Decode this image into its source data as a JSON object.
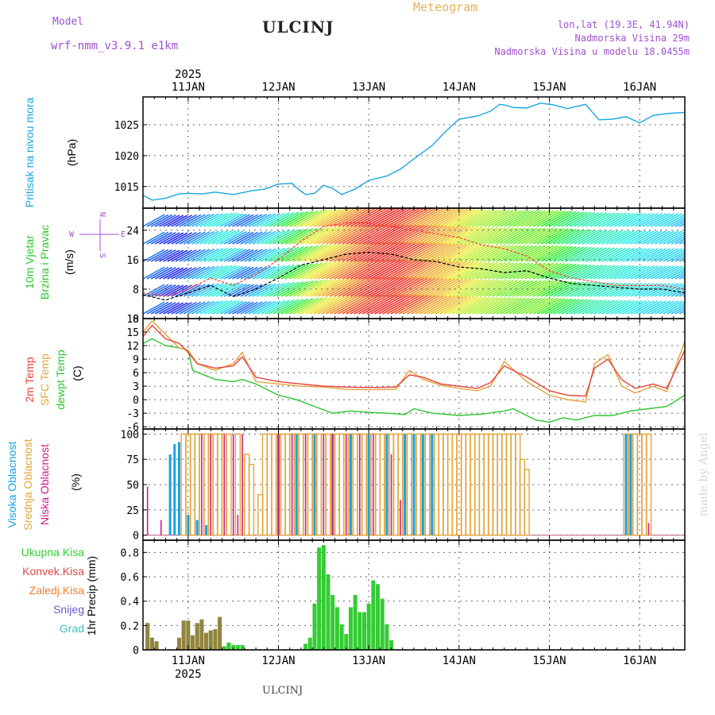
{
  "header": {
    "model_label": "Model",
    "model_name": "wrf-nmm_v3.9.1 e1km",
    "station": "ULCINJ",
    "product": "Meteogram",
    "lonlat": "lon,lat (19.3E, 41.94N)",
    "elevation": "Nadmorska Visina 29m",
    "model_elevation": "Nadmorska Visina u modelu 18.0455m",
    "signature": "made by Angel",
    "footer_station": "ULCINJ"
  },
  "colors": {
    "pressure": "#1aa6e0",
    "temp": "#e8403a",
    "sfc_temp": "#e3a43a",
    "dewpoint": "#2ec52e",
    "cloud_high": "#1aa0e6",
    "cloud_mid": "#e3a43a",
    "cloud_low": "#d01a8a",
    "precip_total": "#33cc33",
    "precip_conv": "#e04848",
    "precip_snow": "#6a5acd",
    "precip_frz": "#f08030",
    "precip_grad": "#40c0c0",
    "purple_label": "#a050d0",
    "orange_label": "#e8b060"
  },
  "chart_data": {
    "type": "line",
    "year": "2025",
    "day_labels": [
      "11JAN",
      "12JAN",
      "13JAN",
      "14JAN",
      "15JAN",
      "16JAN"
    ],
    "panels": [
      {
        "name": "pressure",
        "labels": [
          "Pritisak na nivou mora",
          "(hPa)"
        ],
        "ylim": [
          1011.5,
          1029.5
        ],
        "yticks": [
          1015,
          1020,
          1025
        ],
        "series": [
          {
            "name": "Pritisak na nivou mora",
            "x": [
              10.5,
              10.6,
              10.75,
              10.9,
              11.0,
              11.15,
              11.3,
              11.5,
              11.7,
              11.85,
              12.0,
              12.15,
              12.2,
              12.3,
              12.4,
              12.5,
              12.6,
              12.7,
              12.85,
              13.0,
              13.2,
              13.35,
              13.5,
              13.7,
              13.85,
              14.0,
              14.2,
              14.35,
              14.45,
              14.5,
              14.6,
              14.75,
              14.9,
              15.05,
              15.2,
              15.4,
              15.55,
              15.7,
              15.85,
              16.0,
              16.15,
              16.3,
              16.5
            ],
            "y": [
              1013.6,
              1012.8,
              1013.1,
              1013.8,
              1013.9,
              1013.8,
              1014.1,
              1013.7,
              1014.3,
              1014.6,
              1015.4,
              1015.5,
              1014.8,
              1013.7,
              1013.9,
              1015.2,
              1014.7,
              1013.7,
              1014.6,
              1016.0,
              1016.7,
              1017.8,
              1019.5,
              1021.6,
              1023.9,
              1025.9,
              1026.4,
              1027.2,
              1028.3,
              1028.2,
              1027.8,
              1027.7,
              1028.5,
              1028.2,
              1027.6,
              1028.3,
              1025.8,
              1025.9,
              1026.3,
              1025.3,
              1026.5,
              1026.8,
              1027.0
            ]
          }
        ]
      },
      {
        "name": "wind",
        "labels": [
          "10m Vjetar",
          "Brzina i Pravac",
          "(m/s)"
        ],
        "compass": [
          "N",
          "W",
          "E",
          "S"
        ],
        "ylim": [
          0,
          30
        ],
        "yticks": [
          0,
          8,
          16,
          24
        ],
        "series": [
          {
            "name": "speed",
            "x": [
              10.5,
              10.75,
              11.0,
              11.25,
              11.5,
              11.75,
              12.0,
              12.25,
              12.5,
              12.75,
              13.0,
              13.25,
              13.5,
              13.75,
              14.0,
              14.25,
              14.5,
              14.75,
              15.0,
              15.25,
              15.5,
              15.75,
              16.0,
              16.25,
              16.5
            ],
            "y": [
              6.5,
              5.0,
              7.0,
              9.0,
              6.0,
              8.0,
              11.0,
              14.5,
              16.0,
              17.5,
              18.0,
              17.5,
              16.0,
              15.5,
              14.0,
              13.5,
              12.5,
              13.0,
              11.0,
              9.5,
              9.0,
              8.5,
              8.0,
              8.0,
              7.0
            ]
          },
          {
            "name": "gust",
            "x": [
              10.5,
              10.75,
              11.0,
              11.25,
              11.5,
              11.75,
              12.0,
              12.25,
              12.5,
              12.75,
              13.0,
              13.25,
              13.5,
              13.75,
              14.0,
              14.25,
              14.5,
              14.75,
              15.0,
              15.25,
              15.5,
              15.75,
              16.0,
              16.25,
              16.5
            ],
            "y": [
              7,
              6,
              8,
              11,
              9,
              12,
              16,
              21,
              25,
              26,
              26,
              25,
              24,
              23,
              22,
              20,
              19,
              17,
              13,
              11,
              10,
              9,
              9,
              9,
              8
            ]
          }
        ]
      },
      {
        "name": "temperature",
        "labels": [
          "2m Temp",
          "SFC Temp",
          "dewpt Temp",
          "(C)"
        ],
        "ylim": [
          -6.5,
          18
        ],
        "yticks": [
          -6,
          -3,
          0,
          3,
          6,
          9,
          12,
          15,
          18
        ],
        "series": [
          {
            "name": "2m Temp",
            "x": [
              10.5,
              10.6,
              10.75,
              10.9,
              11.0,
              11.1,
              11.3,
              11.5,
              11.6,
              11.75,
              12.0,
              12.25,
              12.5,
              12.75,
              13.0,
              13.3,
              13.45,
              13.6,
              13.8,
              14.0,
              14.2,
              14.35,
              14.5,
              14.75,
              15.0,
              15.2,
              15.4,
              15.5,
              15.65,
              15.8,
              15.95,
              16.15,
              16.3,
              16.5
            ],
            "y": [
              14.0,
              16.5,
              13.5,
              12.5,
              10.5,
              8.0,
              7.0,
              7.5,
              9.5,
              5.0,
              4.0,
              3.5,
              3.0,
              2.8,
              2.7,
              2.8,
              5.5,
              5.0,
              3.5,
              3.0,
              2.5,
              3.8,
              7.5,
              5.0,
              2.0,
              1.0,
              0.8,
              7.0,
              9.0,
              4.5,
              2.5,
              3.5,
              2.5,
              11.0
            ]
          },
          {
            "name": "SFC Temp",
            "x": [
              10.5,
              10.6,
              10.75,
              10.9,
              11.0,
              11.1,
              11.3,
              11.5,
              11.6,
              11.75,
              12.0,
              12.25,
              12.5,
              12.75,
              13.0,
              13.3,
              13.45,
              13.6,
              13.8,
              14.0,
              14.2,
              14.35,
              14.5,
              14.75,
              15.0,
              15.2,
              15.4,
              15.5,
              15.65,
              15.8,
              15.95,
              16.15,
              16.3,
              16.5
            ],
            "y": [
              15.0,
              17.5,
              14.5,
              11.5,
              11.0,
              8.0,
              6.5,
              8.0,
              10.5,
              4.0,
              3.5,
              3.0,
              2.8,
              2.3,
              2.2,
              2.3,
              6.5,
              4.5,
              3.2,
              2.5,
              2.0,
              3.0,
              8.5,
              4.0,
              1.0,
              0.0,
              -0.5,
              8.0,
              10.0,
              3.0,
              1.5,
              3.0,
              1.8,
              13.0
            ]
          },
          {
            "name": "dewpt Temp",
            "x": [
              10.5,
              10.6,
              10.75,
              10.9,
              11.0,
              11.05,
              11.3,
              11.5,
              11.6,
              11.75,
              12.0,
              12.2,
              12.4,
              12.6,
              12.8,
              13.0,
              13.2,
              13.4,
              13.5,
              13.7,
              14.0,
              14.25,
              14.5,
              14.6,
              14.75,
              14.85,
              15.0,
              15.15,
              15.3,
              15.5,
              15.7,
              15.9,
              16.1,
              16.3,
              16.5
            ],
            "y": [
              12.5,
              13.5,
              12.0,
              11.5,
              11.0,
              6.5,
              4.5,
              4.0,
              4.5,
              3.5,
              1.0,
              0.0,
              -1.5,
              -3.0,
              -2.5,
              -2.8,
              -3.0,
              -3.3,
              -2.0,
              -3.0,
              -3.5,
              -3.2,
              -2.5,
              -2.0,
              -3.5,
              -4.5,
              -5.0,
              -4.0,
              -4.5,
              -3.5,
              -3.5,
              -2.5,
              -2.0,
              -1.5,
              1.0
            ]
          }
        ]
      },
      {
        "name": "cloud",
        "labels": [
          "Visoka Oblacnost",
          "Srednja Oblacnost",
          "Niska Oblacnost",
          "(%)"
        ],
        "ylim": [
          -5,
          105
        ],
        "yticks": [
          0,
          25,
          50,
          75,
          100
        ],
        "series": [
          {
            "name": "Srednja Oblacnost",
            "x": [
              10.95,
              11.0,
              11.05,
              11.1,
              11.15,
              11.2,
              11.25,
              11.3,
              11.35,
              11.4,
              11.45,
              11.55,
              11.65,
              11.7,
              11.8,
              11.85,
              11.9,
              11.95,
              12.0,
              12.05,
              12.1,
              12.15,
              12.2,
              12.25,
              12.3,
              12.35,
              12.4,
              12.45,
              12.5,
              12.55,
              12.6,
              12.65,
              12.7,
              12.75,
              12.8,
              12.85,
              12.9,
              12.95,
              13.0,
              13.05,
              13.1,
              13.15,
              13.2,
              13.25,
              13.3,
              13.35,
              13.4,
              13.45,
              13.5,
              13.55,
              13.6,
              13.65,
              13.7,
              13.75,
              13.8,
              13.85,
              13.9,
              13.95,
              14.0,
              14.05,
              14.1,
              14.15,
              14.2,
              14.25,
              14.3,
              14.35,
              14.4,
              14.45,
              14.5,
              14.55,
              14.6,
              14.65,
              14.7,
              14.75,
              15.85,
              15.9,
              15.95,
              16.0,
              16.05,
              16.1
            ],
            "y": [
              100,
              100,
              100,
              100,
              100,
              100,
              100,
              100,
              100,
              100,
              100,
              100,
              80,
              70,
              40,
              100,
              100,
              100,
              100,
              100,
              100,
              100,
              100,
              100,
              100,
              100,
              100,
              100,
              100,
              100,
              100,
              100,
              100,
              100,
              100,
              100,
              100,
              100,
              100,
              100,
              100,
              100,
              100,
              100,
              100,
              100,
              100,
              100,
              100,
              100,
              100,
              100,
              100,
              100,
              100,
              100,
              100,
              100,
              100,
              100,
              100,
              100,
              100,
              100,
              100,
              100,
              100,
              100,
              100,
              100,
              100,
              100,
              75,
              65,
              100,
              100,
              100,
              100,
              100,
              100
            ]
          },
          {
            "name": "Visoka Oblacnost",
            "x": [
              10.8,
              10.85,
              10.9,
              11.0,
              11.1,
              11.2,
              12.0,
              12.2,
              12.4,
              12.6,
              12.8,
              13.0,
              13.2,
              13.4,
              13.5,
              13.6,
              13.7,
              15.85,
              15.9
            ],
            "y": [
              80,
              90,
              92,
              20,
              15,
              10,
              100,
              100,
              100,
              100,
              100,
              100,
              100,
              100,
              100,
              100,
              100,
              100,
              100
            ]
          },
          {
            "name": "Niska Oblacnost",
            "x": [
              10.55,
              10.7,
              11.15,
              11.25,
              11.4,
              11.5,
              11.55,
              11.6,
              12.0,
              12.15,
              12.3,
              12.5,
              12.6,
              12.75,
              12.9,
              13.05,
              13.25,
              13.35,
              16.1
            ],
            "y": [
              48,
              15,
              100,
              100,
              100,
              100,
              20,
              100,
              100,
              100,
              100,
              100,
              100,
              100,
              100,
              100,
              80,
              35,
              12
            ]
          }
        ]
      },
      {
        "name": "precip",
        "labels": [
          "Ukupna Kisa",
          "Konvek.Kisa",
          "Zaledj.Kisa",
          "Snijeg",
          "Grad",
          "1hr Precip (mm)"
        ],
        "ylim": [
          0,
          0.9
        ],
        "yticks": [
          0,
          0.2,
          0.4,
          0.6,
          0.8
        ],
        "series": [
          {
            "name": "Ukupna Kisa",
            "x": [
              10.55,
              10.6,
              10.65,
              10.9,
              10.95,
              11.0,
              11.05,
              11.1,
              11.15,
              11.2,
              11.25,
              11.3,
              11.35,
              11.4,
              11.45,
              11.5,
              11.55,
              11.6,
              11.65,
              12.3,
              12.35,
              12.4,
              12.45,
              12.5,
              12.55,
              12.6,
              12.65,
              12.7,
              12.75,
              12.8,
              12.85,
              12.9,
              12.95,
              13.0,
              13.05,
              13.1,
              13.15,
              13.2,
              13.25,
              13.3
            ],
            "y": [
              0.22,
              0.1,
              0.07,
              0.1,
              0.24,
              0.24,
              0.12,
              0.22,
              0.25,
              0.14,
              0.16,
              0.17,
              0.27,
              0.03,
              0.06,
              0.04,
              0.04,
              0.04,
              0.0,
              0.05,
              0.1,
              0.38,
              0.84,
              0.86,
              0.62,
              0.45,
              0.35,
              0.21,
              0.13,
              0.35,
              0.45,
              0.31,
              0.31,
              0.38,
              0.57,
              0.54,
              0.42,
              0.21,
              0.08,
              0.0
            ]
          },
          {
            "name": "Konvek.Kisa",
            "x": [
              10.55,
              10.6,
              10.65,
              10.9,
              10.95,
              11.0,
              11.05,
              11.1,
              11.15,
              11.2,
              11.25,
              11.3,
              11.35
            ],
            "y": [
              0.22,
              0.1,
              0.07,
              0.1,
              0.24,
              0.24,
              0.12,
              0.22,
              0.25,
              0.14,
              0.16,
              0.17,
              0.27
            ]
          }
        ]
      }
    ]
  }
}
